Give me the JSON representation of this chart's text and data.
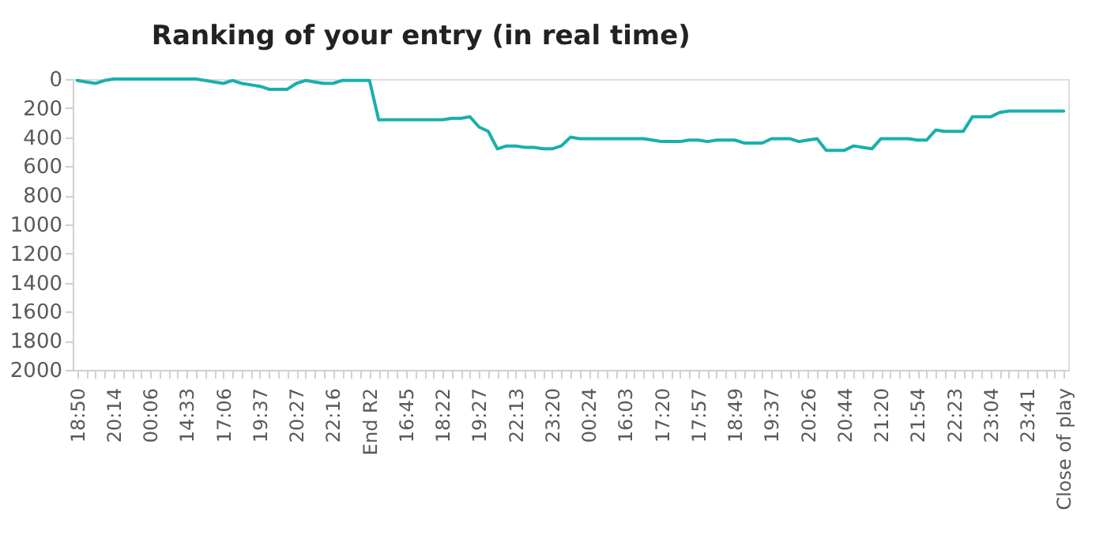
{
  "chart_data": {
    "type": "line",
    "title": "Ranking of your entry (in real time)",
    "categories": [
      "18:50",
      null,
      null,
      null,
      "20:14",
      null,
      null,
      null,
      "00:06",
      null,
      null,
      null,
      "14:33",
      null,
      null,
      null,
      "17:06",
      null,
      null,
      null,
      "19:37",
      null,
      null,
      null,
      "20:27",
      null,
      null,
      null,
      "22:16",
      null,
      null,
      null,
      "End R2",
      null,
      null,
      null,
      "16:45",
      null,
      null,
      null,
      "18:22",
      null,
      null,
      null,
      "19:27",
      null,
      null,
      null,
      "22:13",
      null,
      null,
      null,
      "23:20",
      null,
      null,
      null,
      "00:24",
      null,
      null,
      null,
      "16:03",
      null,
      null,
      null,
      "17:20",
      null,
      null,
      null,
      "17:57",
      null,
      null,
      null,
      "18:49",
      null,
      null,
      null,
      "19:37",
      null,
      null,
      null,
      "20:26",
      null,
      null,
      null,
      "20:44",
      null,
      null,
      null,
      "21:20",
      null,
      null,
      null,
      "21:54",
      null,
      null,
      null,
      "22:23",
      null,
      null,
      null,
      "23:04",
      null,
      null,
      null,
      "23:41",
      null,
      null,
      null,
      "Close of play"
    ],
    "series": [
      {
        "color": "#17b0ad",
        "values": [
          10,
          20,
          30,
          10,
          0,
          0,
          0,
          0,
          0,
          0,
          0,
          0,
          0,
          0,
          10,
          20,
          30,
          10,
          30,
          40,
          50,
          70,
          70,
          70,
          30,
          10,
          20,
          30,
          30,
          10,
          10,
          10,
          10,
          280,
          280,
          280,
          280,
          280,
          280,
          280,
          280,
          270,
          270,
          260,
          330,
          360,
          480,
          460,
          460,
          470,
          470,
          480,
          480,
          460,
          400,
          410,
          410,
          410,
          410,
          410,
          410,
          410,
          410,
          420,
          430,
          430,
          430,
          420,
          420,
          430,
          420,
          420,
          420,
          440,
          440,
          440,
          410,
          410,
          410,
          430,
          420,
          410,
          490,
          490,
          490,
          460,
          470,
          480,
          410,
          410,
          410,
          410,
          420,
          420,
          350,
          360,
          360,
          360,
          260,
          260,
          260,
          230,
          220,
          220,
          220,
          220,
          220,
          220,
          220
        ]
      }
    ],
    "ylim": [
      2000,
      0
    ],
    "yticks": [
      0,
      200,
      400,
      600,
      800,
      1000,
      1200,
      1400,
      1600,
      1800,
      2000
    ],
    "grid": false,
    "legend": false,
    "marker": "none",
    "line_style": "solid"
  }
}
